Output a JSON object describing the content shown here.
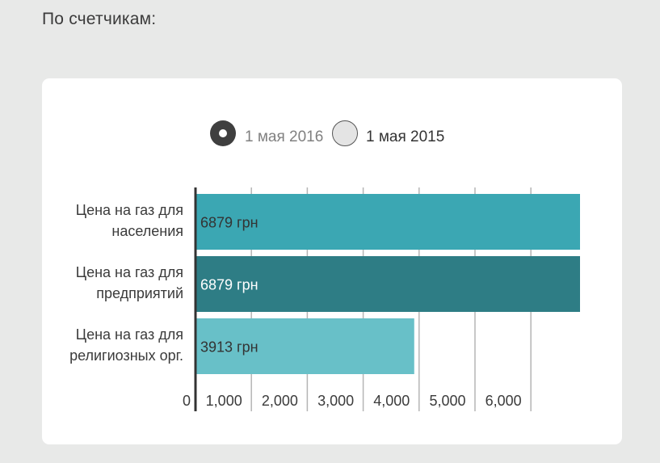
{
  "section_title": "По счетчикам:",
  "legend": {
    "options": [
      {
        "label": "1 мая 2016",
        "selected": true
      },
      {
        "label": "1 мая 2015",
        "selected": false
      }
    ]
  },
  "chart_data": {
    "type": "bar",
    "orientation": "horizontal",
    "categories": [
      [
        "Цена на газ для",
        "населения"
      ],
      [
        "Цена на газ для",
        "предприятий"
      ],
      [
        "Цена на газ для",
        "религиозных орг."
      ]
    ],
    "values": [
      6879,
      6879,
      3913
    ],
    "value_labels": [
      "6879 грн",
      "6879 грн",
      "3913 грн"
    ],
    "bar_colors": [
      "#3ba7b3",
      "#2e7d85",
      "#68c0c8"
    ],
    "label_colors": [
      "#333333",
      "#ffffff",
      "#333333"
    ],
    "x_ticks": [
      0,
      1000,
      2000,
      3000,
      4000,
      5000,
      6000
    ],
    "x_tick_labels": [
      "0",
      "1,000",
      "2,000",
      "3,000",
      "4,000",
      "5,000",
      "6,000"
    ],
    "xlim": [
      0,
      6879
    ],
    "grid": true
  }
}
